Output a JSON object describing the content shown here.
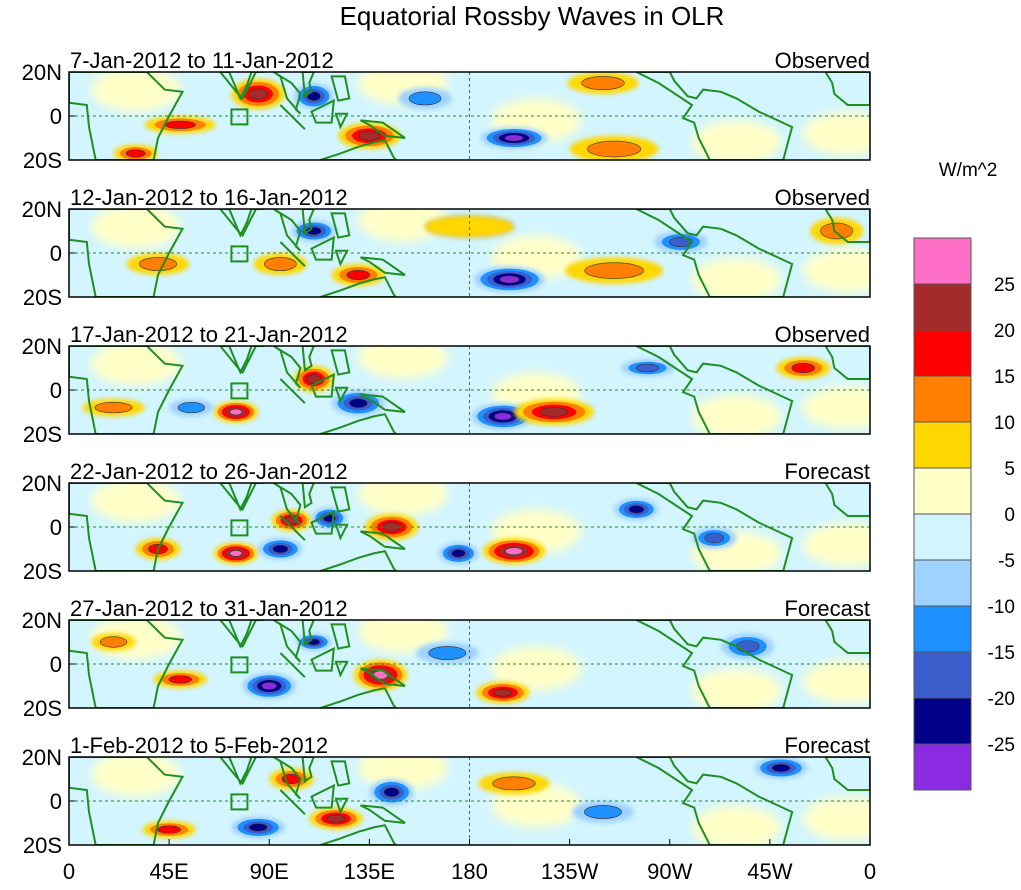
{
  "chart_data": {
    "type": "heatmap",
    "title": "Equatorial Rossby Waves in OLR",
    "units": "W/m^2",
    "colorbar": {
      "tick_labels": [
        "25",
        "20",
        "15",
        "10",
        "5",
        "0",
        "-5",
        "-10",
        "-15",
        "-20",
        "-25"
      ],
      "colors_top_to_bottom": [
        "#ff6ec7",
        "#a52a2a",
        "#ff0000",
        "#ff7f00",
        "#ffd700",
        "#ffffc8",
        "#d2f5ff",
        "#a0d2ff",
        "#1e90ff",
        "#3a5fcd",
        "#00008b",
        "#8a2be2"
      ]
    },
    "x_axis": {
      "tick_labels": [
        "0",
        "45E",
        "90E",
        "135E",
        "180",
        "135W",
        "90W",
        "45W",
        "0"
      ],
      "lon_values": [
        0,
        45,
        90,
        135,
        180,
        225,
        270,
        315,
        360
      ],
      "range": [
        0,
        360
      ]
    },
    "y_axis": {
      "tick_labels": [
        "20N",
        "0",
        "20S"
      ],
      "lat_values": [
        20,
        0,
        -20
      ],
      "range": [
        -20,
        20
      ]
    },
    "panels": [
      {
        "period": "7-Jan-2012 to 11-Jan-2012",
        "status": "Observed",
        "features": [
          {
            "lon": 50,
            "lat": -4,
            "value": 15,
            "rx": 16,
            "ry": 4
          },
          {
            "lon": 85,
            "lat": 10,
            "value": 20,
            "rx": 12,
            "ry": 7
          },
          {
            "lon": 110,
            "lat": 9,
            "value": -20,
            "rx": 9,
            "ry": 6
          },
          {
            "lon": 135,
            "lat": -9,
            "value": 20,
            "rx": 14,
            "ry": 6
          },
          {
            "lon": 200,
            "lat": -10,
            "value": -25,
            "rx": 15,
            "ry": 5
          },
          {
            "lon": 245,
            "lat": -15,
            "value": 12,
            "rx": 20,
            "ry": 6
          },
          {
            "lon": 240,
            "lat": 15,
            "value": 10,
            "rx": 16,
            "ry": 5
          },
          {
            "lon": 30,
            "lat": -17,
            "value": 15,
            "rx": 10,
            "ry": 4
          },
          {
            "lon": 160,
            "lat": 8,
            "value": -10,
            "rx": 12,
            "ry": 5
          }
        ]
      },
      {
        "period": "12-Jan-2012 to 16-Jan-2012",
        "status": "Observed",
        "features": [
          {
            "lon": 40,
            "lat": -5,
            "value": 12,
            "rx": 14,
            "ry": 5
          },
          {
            "lon": 95,
            "lat": -5,
            "value": 10,
            "rx": 12,
            "ry": 5
          },
          {
            "lon": 110,
            "lat": 10,
            "value": -20,
            "rx": 10,
            "ry": 5
          },
          {
            "lon": 130,
            "lat": -10,
            "value": 15,
            "rx": 12,
            "ry": 5
          },
          {
            "lon": 198,
            "lat": -12,
            "value": -25,
            "rx": 16,
            "ry": 6
          },
          {
            "lon": 245,
            "lat": -8,
            "value": 10,
            "rx": 22,
            "ry": 6
          },
          {
            "lon": 275,
            "lat": 5,
            "value": -15,
            "rx": 12,
            "ry": 5
          },
          {
            "lon": 345,
            "lat": 10,
            "value": 12,
            "rx": 12,
            "ry": 6
          },
          {
            "lon": 180,
            "lat": 12,
            "value": 8,
            "rx": 20,
            "ry": 5
          }
        ]
      },
      {
        "period": "17-Jan-2012 to 21-Jan-2012",
        "status": "Observed",
        "features": [
          {
            "lon": 75,
            "lat": -10,
            "value": 25,
            "rx": 10,
            "ry": 5
          },
          {
            "lon": 110,
            "lat": 5,
            "value": 20,
            "rx": 9,
            "ry": 6
          },
          {
            "lon": 130,
            "lat": -6,
            "value": -20,
            "rx": 12,
            "ry": 6
          },
          {
            "lon": 195,
            "lat": -12,
            "value": -25,
            "rx": 14,
            "ry": 6
          },
          {
            "lon": 218,
            "lat": -10,
            "value": 20,
            "rx": 18,
            "ry": 6
          },
          {
            "lon": 330,
            "lat": 10,
            "value": 15,
            "rx": 12,
            "ry": 5
          },
          {
            "lon": 260,
            "lat": 10,
            "value": -15,
            "rx": 12,
            "ry": 4
          },
          {
            "lon": 20,
            "lat": -8,
            "value": 12,
            "rx": 14,
            "ry": 4
          },
          {
            "lon": 55,
            "lat": -8,
            "value": -12,
            "rx": 10,
            "ry": 4
          }
        ]
      },
      {
        "period": "22-Jan-2012 to 26-Jan-2012",
        "status": "Forecast",
        "features": [
          {
            "lon": 75,
            "lat": -12,
            "value": 25,
            "rx": 10,
            "ry": 5
          },
          {
            "lon": 95,
            "lat": -10,
            "value": -20,
            "rx": 10,
            "ry": 5
          },
          {
            "lon": 100,
            "lat": 3,
            "value": 20,
            "rx": 9,
            "ry": 5
          },
          {
            "lon": 117,
            "lat": 4,
            "value": -20,
            "rx": 8,
            "ry": 5
          },
          {
            "lon": 145,
            "lat": 0,
            "value": 20,
            "rx": 12,
            "ry": 6
          },
          {
            "lon": 175,
            "lat": -12,
            "value": -20,
            "rx": 9,
            "ry": 5
          },
          {
            "lon": 200,
            "lat": -11,
            "value": 25,
            "rx": 14,
            "ry": 6
          },
          {
            "lon": 255,
            "lat": 8,
            "value": -20,
            "rx": 10,
            "ry": 5
          },
          {
            "lon": 290,
            "lat": -5,
            "value": -15,
            "rx": 10,
            "ry": 5
          },
          {
            "lon": 40,
            "lat": -10,
            "value": 15,
            "rx": 10,
            "ry": 5
          }
        ]
      },
      {
        "period": "27-Jan-2012 to 31-Jan-2012",
        "status": "Forecast",
        "features": [
          {
            "lon": 90,
            "lat": -10,
            "value": -25,
            "rx": 12,
            "ry": 6
          },
          {
            "lon": 110,
            "lat": 10,
            "value": -20,
            "rx": 8,
            "ry": 4
          },
          {
            "lon": 140,
            "lat": -5,
            "value": 25,
            "rx": 12,
            "ry": 7
          },
          {
            "lon": 195,
            "lat": -13,
            "value": 20,
            "rx": 12,
            "ry": 5
          },
          {
            "lon": 50,
            "lat": -7,
            "value": 15,
            "rx": 12,
            "ry": 4
          },
          {
            "lon": 305,
            "lat": 8,
            "value": -15,
            "rx": 12,
            "ry": 6
          },
          {
            "lon": 170,
            "lat": 5,
            "value": -10,
            "rx": 14,
            "ry": 5
          },
          {
            "lon": 20,
            "lat": 10,
            "value": 10,
            "rx": 10,
            "ry": 4
          }
        ]
      },
      {
        "period": "1-Feb-2012 to 5-Feb-2012",
        "status": "Forecast",
        "features": [
          {
            "lon": 85,
            "lat": -12,
            "value": -20,
            "rx": 12,
            "ry": 5
          },
          {
            "lon": 120,
            "lat": -8,
            "value": 20,
            "rx": 12,
            "ry": 5
          },
          {
            "lon": 145,
            "lat": 4,
            "value": -20,
            "rx": 10,
            "ry": 6
          },
          {
            "lon": 100,
            "lat": 10,
            "value": 15,
            "rx": 10,
            "ry": 5
          },
          {
            "lon": 320,
            "lat": 15,
            "value": -20,
            "rx": 12,
            "ry": 5
          },
          {
            "lon": 45,
            "lat": -13,
            "value": 15,
            "rx": 12,
            "ry": 4
          },
          {
            "lon": 200,
            "lat": 8,
            "value": 10,
            "rx": 16,
            "ry": 5
          },
          {
            "lon": 240,
            "lat": -5,
            "value": -10,
            "rx": 14,
            "ry": 5
          }
        ]
      }
    ]
  }
}
